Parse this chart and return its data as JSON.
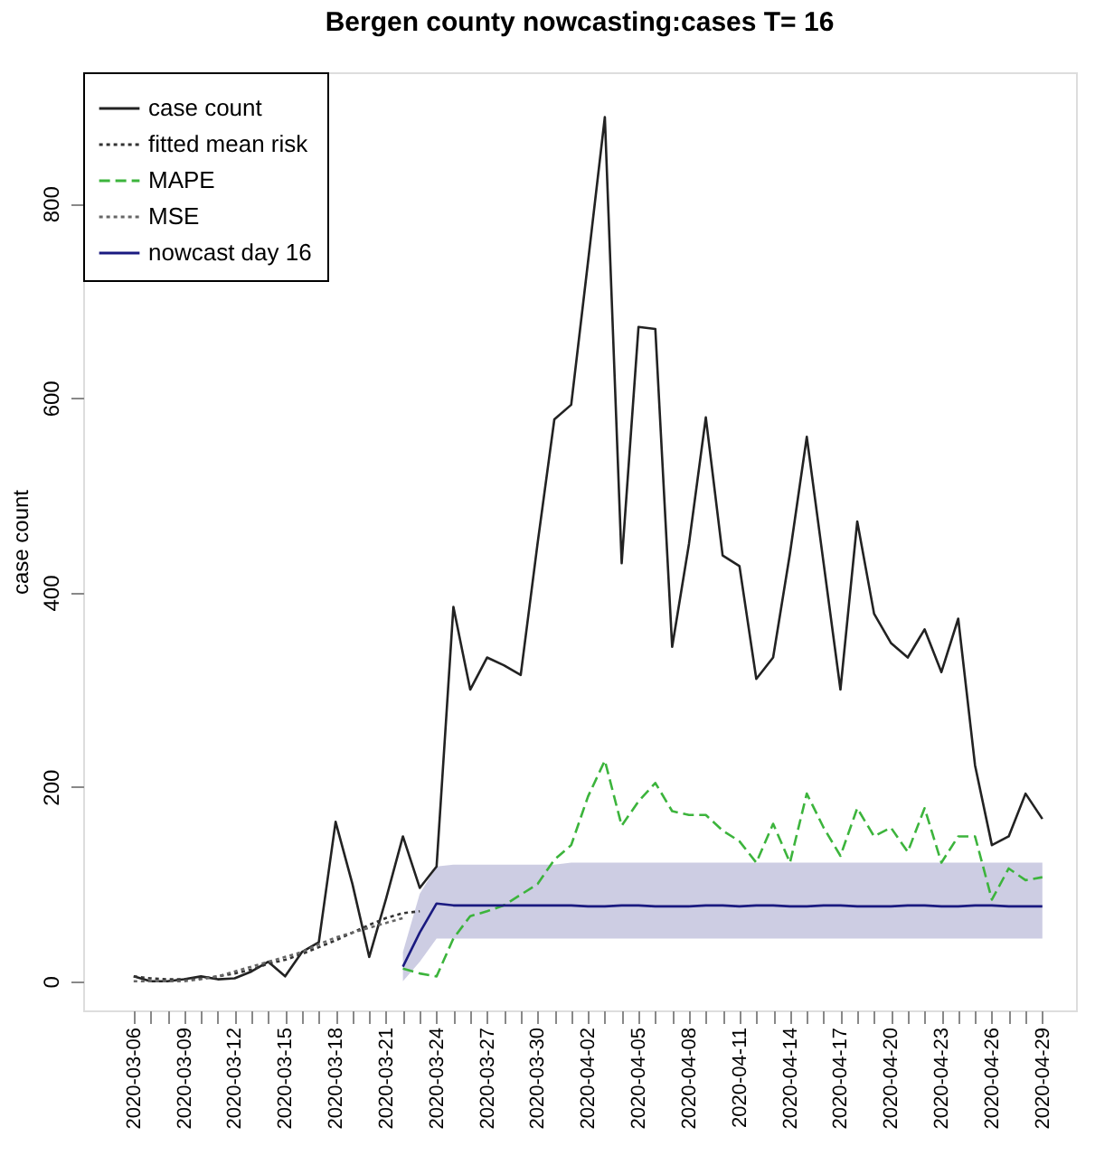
{
  "chart_data": {
    "type": "line",
    "title": "Bergen county nowcasting:cases T= 16",
    "ylabel": "case count",
    "x": [
      "2020-03-06",
      "2020-03-07",
      "2020-03-08",
      "2020-03-09",
      "2020-03-10",
      "2020-03-11",
      "2020-03-12",
      "2020-03-13",
      "2020-03-14",
      "2020-03-15",
      "2020-03-16",
      "2020-03-17",
      "2020-03-18",
      "2020-03-19",
      "2020-03-20",
      "2020-03-21",
      "2020-03-22",
      "2020-03-23",
      "2020-03-24",
      "2020-03-25",
      "2020-03-26",
      "2020-03-27",
      "2020-03-28",
      "2020-03-29",
      "2020-03-30",
      "2020-03-31",
      "2020-04-01",
      "2020-04-02",
      "2020-04-03",
      "2020-04-04",
      "2020-04-05",
      "2020-04-06",
      "2020-04-07",
      "2020-04-08",
      "2020-04-09",
      "2020-04-10",
      "2020-04-11",
      "2020-04-12",
      "2020-04-13",
      "2020-04-14",
      "2020-04-15",
      "2020-04-16",
      "2020-04-17",
      "2020-04-18",
      "2020-04-19",
      "2020-04-20",
      "2020-04-21",
      "2020-04-22",
      "2020-04-23",
      "2020-04-24",
      "2020-04-25",
      "2020-04-26",
      "2020-04-27",
      "2020-04-28",
      "2020-04-29"
    ],
    "series": [
      {
        "name": "case count",
        "color": "#222222",
        "line_style": "solid",
        "values": [
          5,
          0,
          0,
          2,
          5,
          2,
          3,
          10,
          20,
          5,
          30,
          40,
          164,
          100,
          25,
          85,
          149,
          96,
          118,
          385,
          300,
          333,
          325,
          315,
          450,
          578,
          593,
          740,
          889,
          430,
          673,
          671,
          344,
          450,
          580,
          438,
          427,
          311,
          333,
          440,
          560,
          430,
          300,
          473,
          378,
          348,
          333,
          362,
          318,
          373,
          222,
          140,
          149,
          193,
          167
        ]
      },
      {
        "name": "fitted mean risk",
        "color": "#333333",
        "line_style": "dotted",
        "values": [
          5,
          3,
          2,
          2,
          3,
          5,
          8,
          12,
          18,
          22,
          28,
          35,
          42,
          50,
          58,
          65,
          70,
          72,
          null,
          null,
          null,
          null,
          null,
          null,
          null,
          null,
          null,
          null,
          null,
          null,
          null,
          null,
          null,
          null,
          null,
          null,
          null,
          null,
          null,
          null,
          null,
          null,
          null,
          null,
          null,
          null,
          null,
          null,
          null,
          null,
          null,
          null,
          null,
          null,
          null
        ]
      },
      {
        "name": "MAPE",
        "color": "#3cb43c",
        "line_style": "dashed",
        "values": [
          null,
          null,
          null,
          null,
          null,
          null,
          null,
          null,
          null,
          null,
          null,
          null,
          null,
          null,
          null,
          null,
          13,
          8,
          5,
          44,
          67,
          72,
          78,
          89,
          100,
          125,
          140,
          190,
          227,
          160,
          185,
          204,
          175,
          171,
          171,
          155,
          144,
          122,
          162,
          122,
          193,
          158,
          129,
          178,
          149,
          158,
          133,
          178,
          122,
          149,
          149,
          84,
          116,
          104,
          107
        ]
      },
      {
        "name": "MSE",
        "color": "#666666",
        "line_style": "dotted",
        "values": [
          0,
          0,
          0,
          0,
          2,
          5,
          10,
          15,
          20,
          25,
          30,
          38,
          45,
          50,
          55,
          60,
          65,
          null,
          null,
          null,
          null,
          null,
          null,
          null,
          null,
          null,
          null,
          null,
          null,
          null,
          null,
          null,
          null,
          null,
          null,
          null,
          null,
          null,
          null,
          null,
          null,
          null,
          null,
          null,
          null,
          null,
          null,
          null,
          null,
          null,
          null,
          null,
          null,
          null,
          null
        ]
      },
      {
        "name": "nowcast day 16",
        "color": "#1a1a80",
        "line_style": "solid",
        "values": [
          null,
          null,
          null,
          null,
          null,
          null,
          null,
          null,
          null,
          null,
          null,
          null,
          null,
          null,
          null,
          null,
          15,
          50,
          80,
          78,
          78,
          78,
          78,
          78,
          78,
          78,
          78,
          77,
          77,
          78,
          78,
          77,
          77,
          77,
          78,
          78,
          77,
          78,
          78,
          77,
          77,
          78,
          78,
          77,
          77,
          77,
          78,
          78,
          77,
          77,
          78,
          78,
          77,
          77,
          77
        ],
        "lower": [
          null,
          null,
          null,
          null,
          null,
          null,
          null,
          null,
          null,
          null,
          null,
          null,
          null,
          null,
          null,
          null,
          0,
          20,
          44,
          44,
          44,
          44,
          44,
          44,
          44,
          44,
          44,
          44,
          44,
          44,
          44,
          44,
          44,
          44,
          44,
          44,
          44,
          44,
          44,
          44,
          44,
          44,
          44,
          44,
          44,
          44,
          44,
          44,
          44,
          44,
          44,
          44,
          44,
          44,
          44
        ],
        "upper": [
          null,
          null,
          null,
          null,
          null,
          null,
          null,
          null,
          null,
          null,
          null,
          null,
          null,
          null,
          null,
          null,
          30,
          90,
          118,
          120,
          120,
          120,
          120,
          120,
          120,
          120,
          122,
          122,
          122,
          122,
          122,
          122,
          122,
          122,
          122,
          122,
          122,
          122,
          122,
          122,
          122,
          122,
          122,
          122,
          122,
          122,
          122,
          122,
          122,
          122,
          122,
          122,
          122,
          122,
          122
        ]
      }
    ],
    "xlim": [
      "2020-03-03",
      "2020-05-01"
    ],
    "xticks": [
      "2020-03-06",
      {
        "value": "2020-03-07",
        "label": null
      },
      {
        "value": "2020-03-08",
        "label": null
      },
      "2020-03-09",
      {
        "value": "2020-03-10",
        "label": null
      },
      {
        "value": "2020-03-11",
        "label": null
      },
      "2020-03-12",
      {
        "value": "2020-03-13",
        "label": null
      },
      {
        "value": "2020-03-14",
        "label": null
      },
      "2020-03-15",
      {
        "value": "2020-03-16",
        "label": null
      },
      {
        "value": "2020-03-17",
        "label": null
      },
      "2020-03-18",
      {
        "value": "2020-03-19",
        "label": null
      },
      {
        "value": "2020-03-20",
        "label": null
      },
      "2020-03-21",
      {
        "value": "2020-03-22",
        "label": null
      },
      {
        "value": "2020-03-23",
        "label": null
      },
      "2020-03-24",
      {
        "value": "2020-03-25",
        "label": null
      },
      {
        "value": "2020-03-26",
        "label": null
      },
      "2020-03-27",
      {
        "value": "2020-03-28",
        "label": null
      },
      {
        "value": "2020-03-29",
        "label": null
      },
      "2020-03-30",
      {
        "value": "2020-03-31",
        "label": null
      },
      {
        "value": "2020-04-01",
        "label": null
      },
      "2020-04-02",
      {
        "value": "2020-04-03",
        "label": null
      },
      {
        "value": "2020-04-04",
        "label": null
      },
      "2020-04-05",
      {
        "value": "2020-04-06",
        "label": null
      },
      {
        "value": "2020-04-07",
        "label": null
      },
      "2020-04-08",
      {
        "value": "2020-04-09",
        "label": null
      },
      {
        "value": "2020-04-10",
        "label": null
      },
      "2020-04-11",
      {
        "value": "2020-04-12",
        "label": null
      },
      {
        "value": "2020-04-13",
        "label": null
      },
      "2020-04-14",
      {
        "value": "2020-04-15",
        "label": null
      },
      {
        "value": "2020-04-16",
        "label": null
      },
      "2020-04-17",
      {
        "value": "2020-04-18",
        "label": null
      },
      {
        "value": "2020-04-19",
        "label": null
      },
      "2020-04-20",
      {
        "value": "2020-04-21",
        "label": null
      },
      {
        "value": "2020-04-22",
        "label": null
      },
      "2020-04-23",
      {
        "value": "2020-04-24",
        "label": null
      },
      {
        "value": "2020-04-25",
        "label": null
      },
      "2020-04-26",
      {
        "value": "2020-04-27",
        "label": null
      },
      {
        "value": "2020-04-28",
        "label": null
      },
      "2020-04-29"
    ],
    "ylim": [
      -30,
      935
    ],
    "yticks": [
      0,
      200,
      400,
      600,
      800
    ],
    "grid": false,
    "legend": "top left"
  }
}
